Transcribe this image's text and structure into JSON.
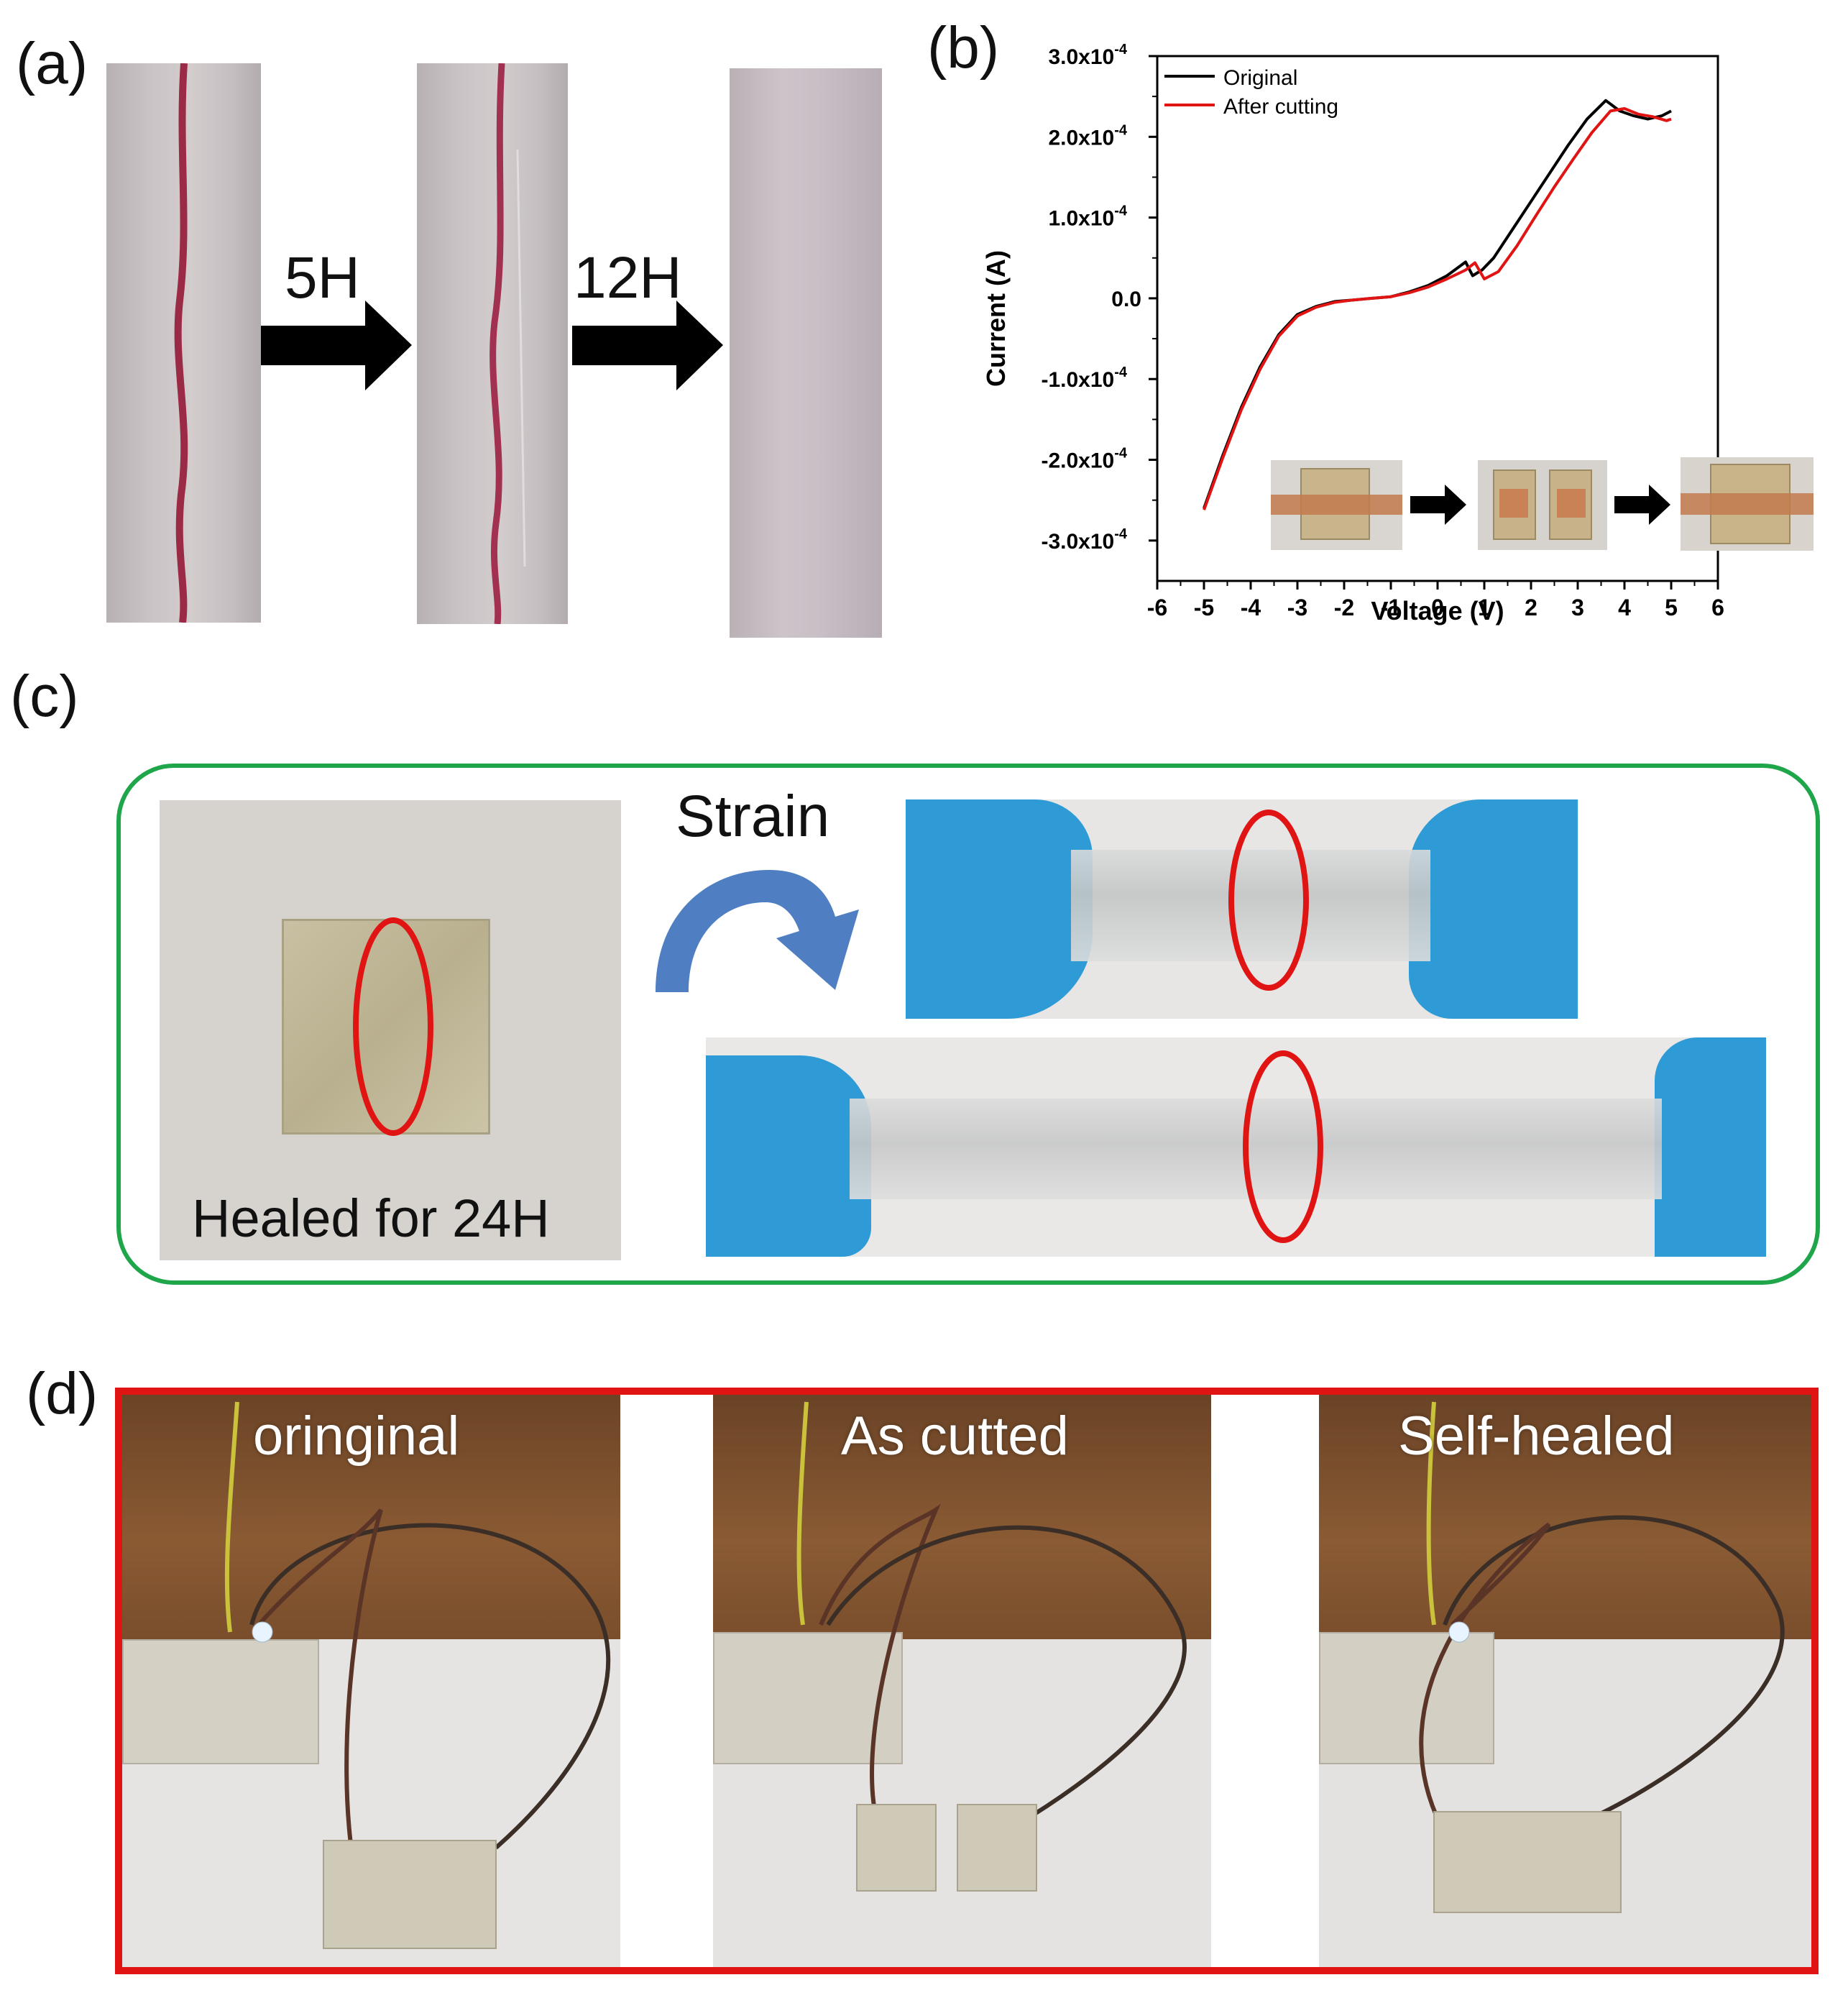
{
  "panels": {
    "a": {
      "label": "(a)",
      "arrows": [
        {
          "label": "5H"
        },
        {
          "label": "12H"
        }
      ]
    },
    "b": {
      "label": "(b)"
    },
    "c": {
      "label": "(c)",
      "strain_label": "Strain",
      "healed_caption": "Healed for 24H",
      "border_color": "#1fa64a",
      "glove_color": "#2e9bd6",
      "ellipse_color": "#e11414"
    },
    "d": {
      "label": "(d)",
      "border_color": "#e11414",
      "captions": [
        "oringinal",
        "As cutted",
        "Self-healed"
      ]
    }
  },
  "chart_data": {
    "type": "line",
    "xlabel": "Voltage (V)",
    "ylabel": "Current (A)",
    "xlim": [
      -6,
      6
    ],
    "ylim": [
      -0.00035,
      0.0003
    ],
    "x_ticks": [
      -6,
      -5,
      -4,
      -3,
      -2,
      -1,
      0,
      1,
      2,
      3,
      4,
      5,
      6
    ],
    "x_tick_labels": [
      "-6",
      "-5",
      "-4",
      "-3",
      "-2",
      "-1",
      "0",
      "1",
      "2",
      "3",
      "4",
      "5",
      "6"
    ],
    "y_ticks": [
      0.0003,
      0.0002,
      0.0001,
      0,
      -0.0001,
      -0.0002,
      -0.0003
    ],
    "y_tick_mantissas": [
      "3.0x10",
      "2.0x10",
      "1.0x10",
      "0.0",
      "-1.0x10",
      "-2.0x10",
      "-3.0x10"
    ],
    "y_tick_exponents": [
      "-4",
      "-4",
      "-4",
      "",
      "-4",
      "-4",
      "-4"
    ],
    "legend_position": "top-left",
    "series": [
      {
        "name": "Original",
        "color": "#000000",
        "x": [
          -5,
          -4.6,
          -4.2,
          -3.8,
          -3.4,
          -3.0,
          -2.6,
          -2.2,
          -1.8,
          -1.4,
          -1.0,
          -0.6,
          -0.2,
          0.2,
          0.6,
          0.75,
          0.95,
          1.2,
          1.6,
          2.0,
          2.4,
          2.8,
          3.2,
          3.6,
          3.9,
          4.2,
          4.5,
          4.8,
          5.0
        ],
        "y": [
          -0.00026,
          -0.000195,
          -0.000135,
          -8.5e-05,
          -4.5e-05,
          -2e-05,
          -1e-05,
          -4e-06,
          -2e-06,
          0.0,
          2e-06,
          8e-06,
          1.6e-05,
          2.8e-05,
          4.5e-05,
          2.8e-05,
          3.5e-05,
          5e-05,
          8.5e-05,
          0.00012,
          0.000155,
          0.00019,
          0.000222,
          0.000245,
          0.000232,
          0.000226,
          0.000222,
          0.000226,
          0.000232
        ]
      },
      {
        "name": "After cutting",
        "color": "#e11414",
        "x": [
          -5,
          -4.6,
          -4.2,
          -3.8,
          -3.4,
          -3.0,
          -2.6,
          -2.2,
          -1.8,
          -1.4,
          -1.0,
          -0.6,
          -0.2,
          0.2,
          0.6,
          0.8,
          1.0,
          1.3,
          1.7,
          2.1,
          2.5,
          2.9,
          3.3,
          3.7,
          4.0,
          4.3,
          4.6,
          4.9,
          5.0
        ],
        "y": [
          -0.000262,
          -0.000198,
          -0.000138,
          -8.8e-05,
          -4.7e-05,
          -2.2e-05,
          -1.1e-05,
          -5e-06,
          -2e-06,
          0.0,
          2e-06,
          7e-06,
          1.4e-05,
          2.4e-05,
          3.5e-05,
          4.4e-05,
          2.4e-05,
          3.3e-05,
          6.5e-05,
          0.000102,
          0.000138,
          0.000172,
          0.000205,
          0.000232,
          0.000235,
          0.000228,
          0.000225,
          0.00022,
          0.000222
        ]
      }
    ]
  }
}
